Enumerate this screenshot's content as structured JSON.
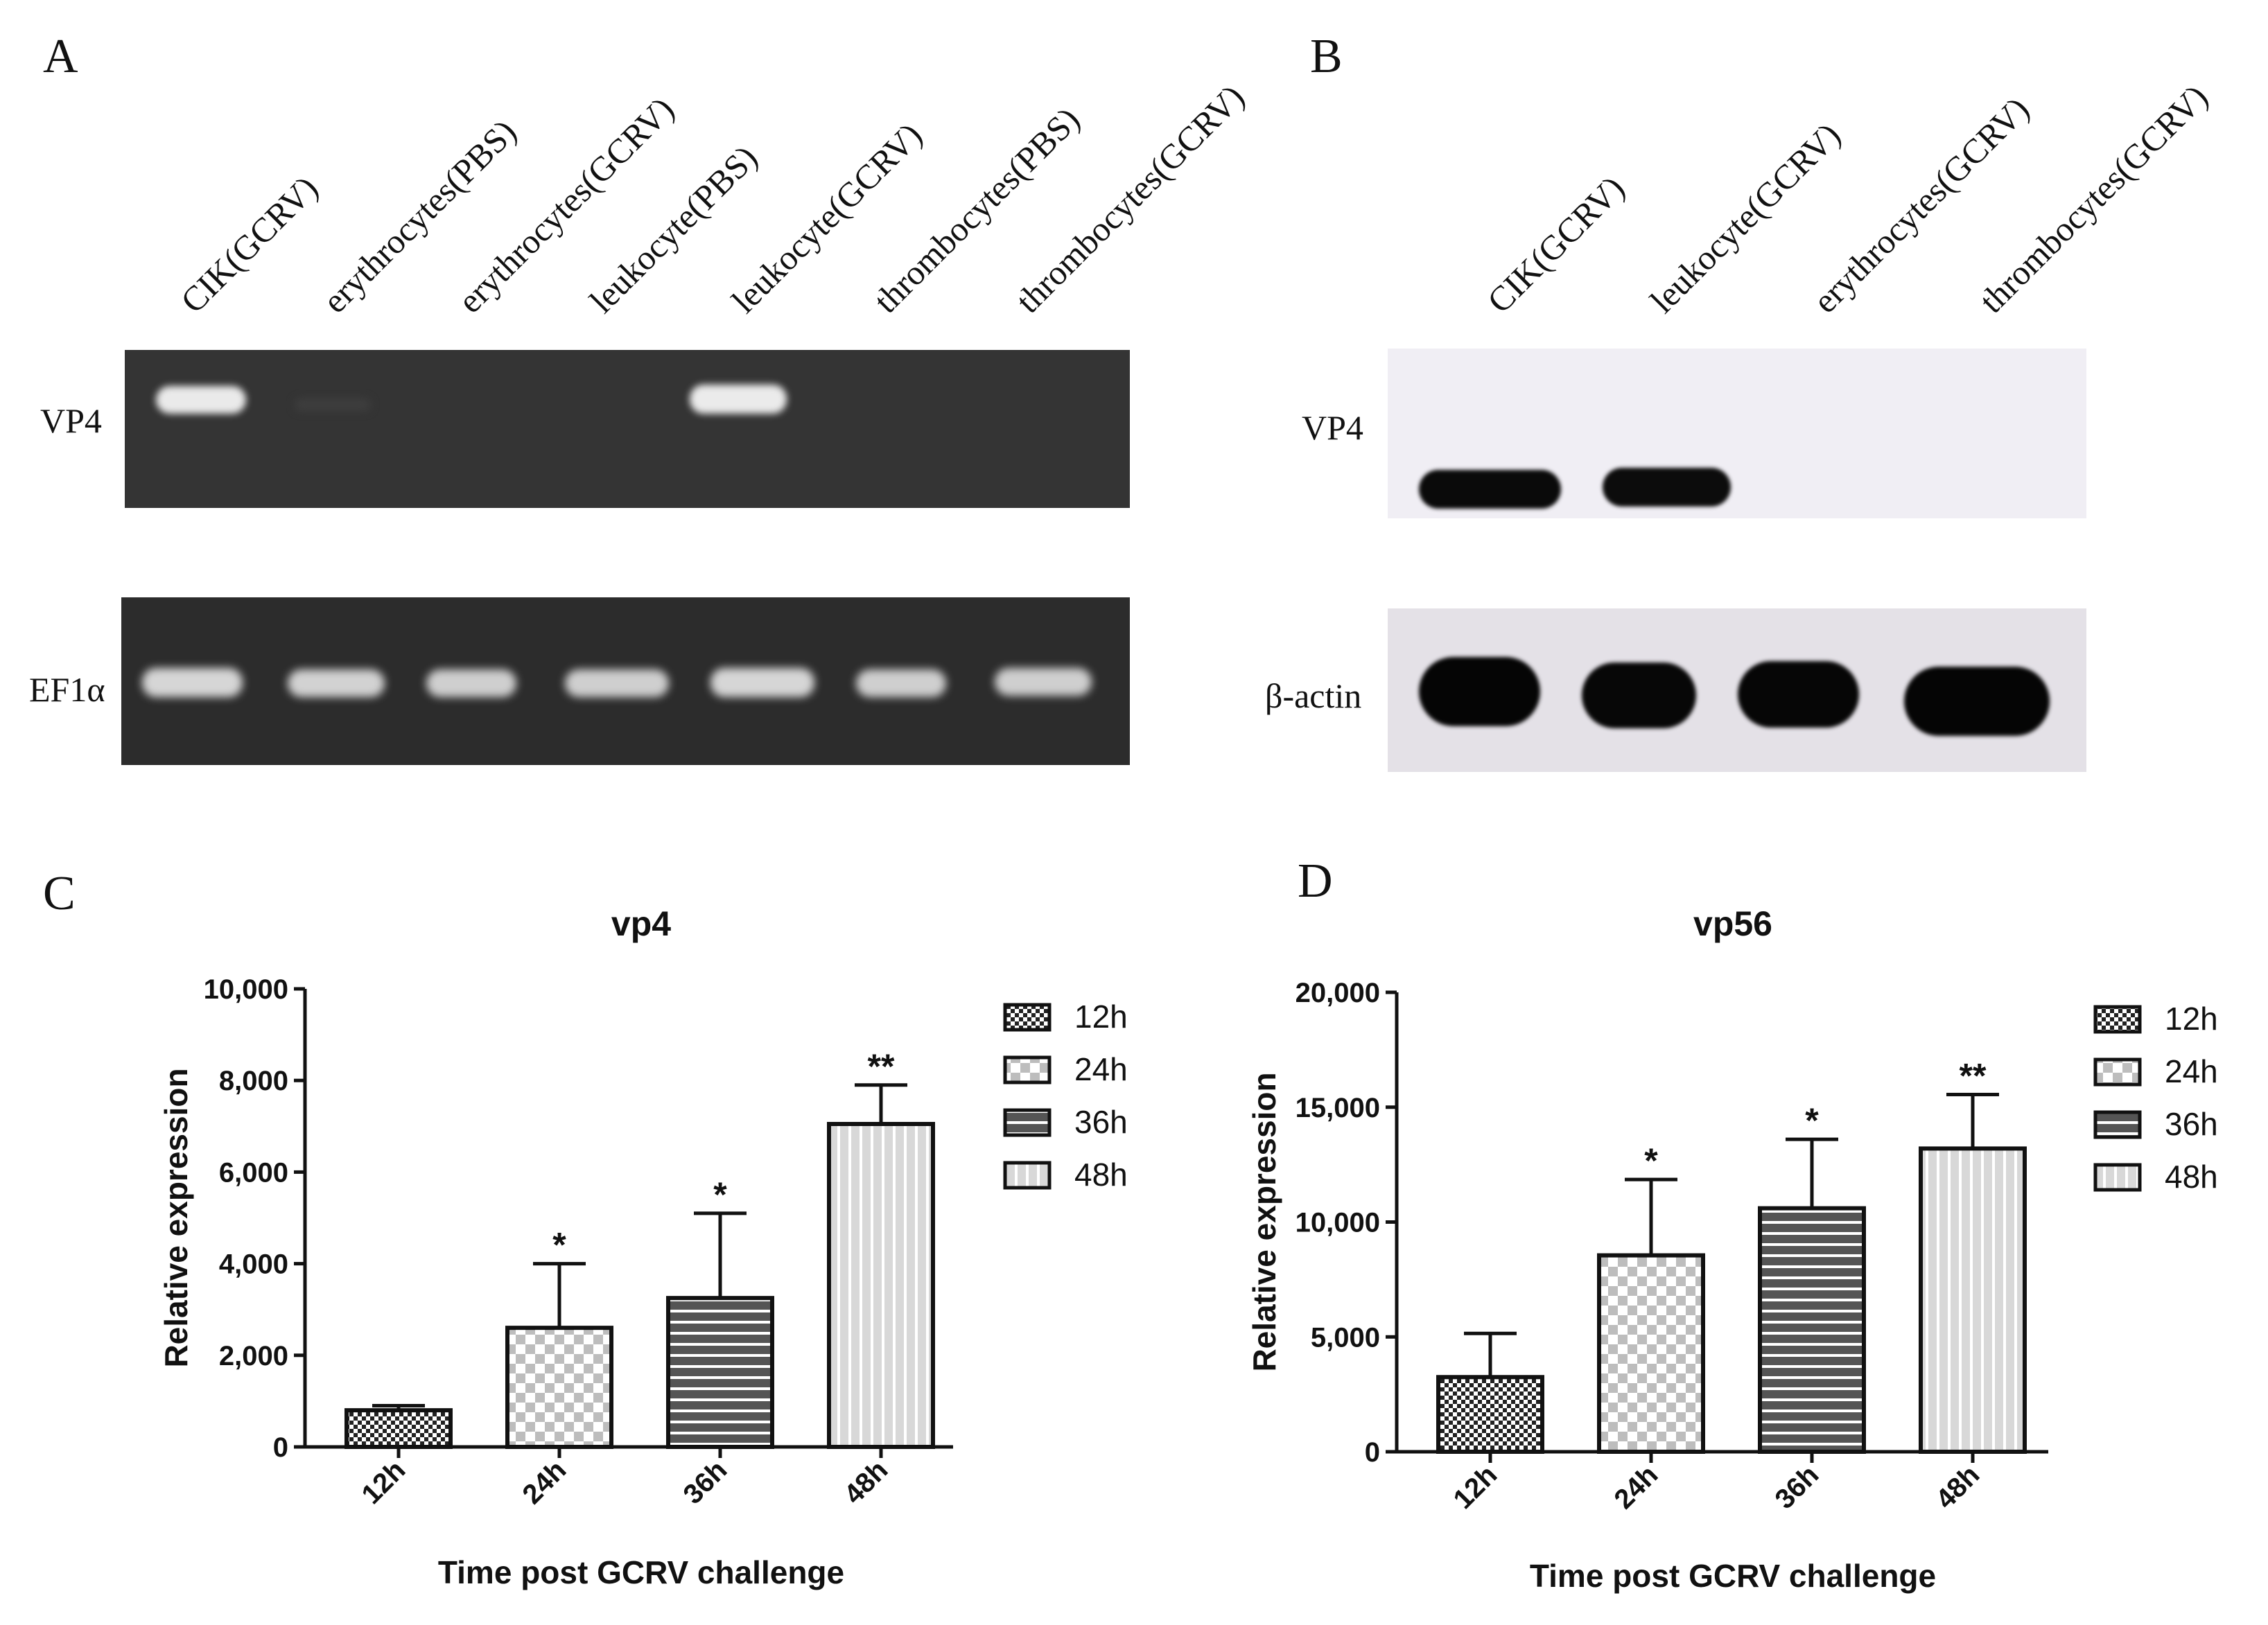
{
  "panels": {
    "A": {
      "letter": "A",
      "lanes": [
        "CIK(GCRV)",
        "erythrocytes(PBS)",
        "erythrocytes(GCRV)",
        "leukocyte(PBS)",
        "leukocyte(GCRV)",
        "thrombocytes(PBS)",
        "thrombocytes(GCRV)"
      ],
      "rows": [
        "VP4",
        "EF1α"
      ]
    },
    "B": {
      "letter": "B",
      "lanes": [
        "CIK(GCRV)",
        "leukocyte(GCRV)",
        "erythrocytes(GCRV)",
        "thrombocytes(GCRV)"
      ],
      "rows": [
        "VP4",
        "β-actin"
      ]
    },
    "C": {
      "letter": "C"
    },
    "D": {
      "letter": "D"
    }
  },
  "chart_data": [
    {
      "type": "bar",
      "title": "vp4",
      "xlabel": "Time post GCRV challenge",
      "ylabel": "Relative expression",
      "categories": [
        "12h",
        "24h",
        "36h",
        "48h"
      ],
      "values": [
        800,
        2600,
        3250,
        7050
      ],
      "error": [
        100,
        1400,
        1850,
        850
      ],
      "significance": [
        "",
        "*",
        "*",
        "**"
      ],
      "ylim": [
        0,
        10000
      ],
      "yticks": [
        0,
        2000,
        4000,
        6000,
        8000,
        10000
      ],
      "ytick_labels": [
        "0",
        "2,000",
        "4,000",
        "6,000",
        "8,000",
        "10,000"
      ],
      "legend": [
        "12h",
        "24h",
        "36h",
        "48h"
      ],
      "legend_position": "right"
    },
    {
      "type": "bar",
      "title": "vp56",
      "xlabel": "Time post GCRV challenge",
      "ylabel": "Relative expression",
      "categories": [
        "12h",
        "24h",
        "36h",
        "48h"
      ],
      "values": [
        3250,
        8550,
        10600,
        13200
      ],
      "error": [
        1900,
        3300,
        3000,
        2350
      ],
      "significance": [
        "",
        "*",
        "*",
        "**"
      ],
      "ylim": [
        0,
        20000
      ],
      "yticks": [
        0,
        5000,
        10000,
        15000,
        20000
      ],
      "ytick_labels": [
        "0",
        "5,000",
        "10,000",
        "15,000",
        "20,000"
      ],
      "legend": [
        "12h",
        "24h",
        "36h",
        "48h"
      ],
      "legend_position": "right"
    }
  ]
}
